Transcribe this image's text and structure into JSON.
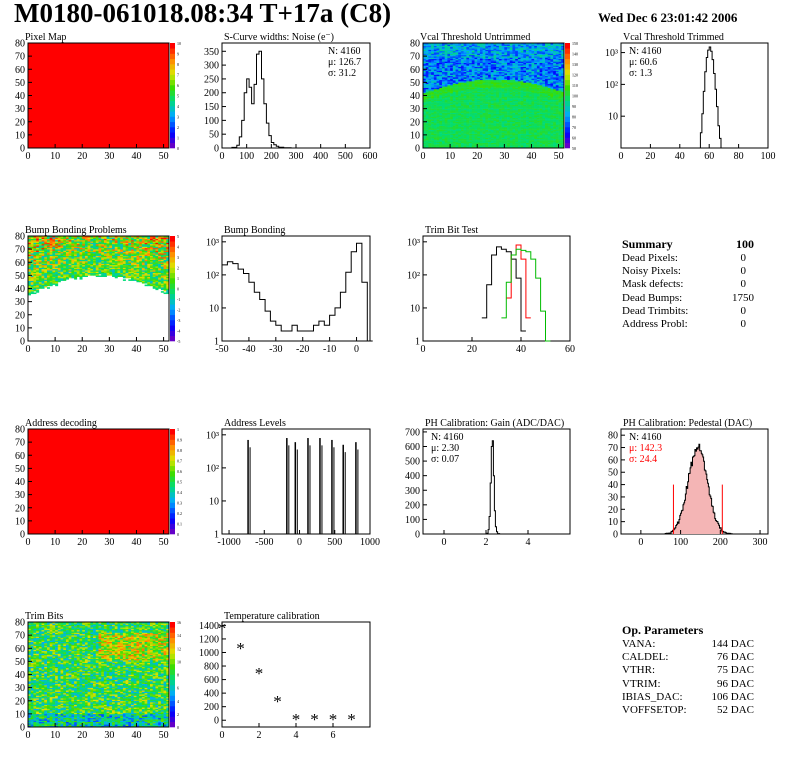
{
  "header": {
    "title": "M0180-061018.08:34 T+17a (C8)",
    "date": "Wed Dec  6 23:01:42 2006"
  },
  "colors": {
    "red": "#ff0000",
    "green": "#00bb00",
    "black": "#000000",
    "frame": "#000000"
  },
  "chart_data": [
    {
      "id": "pixel-map",
      "type": "heatmap",
      "title": "Pixel Map",
      "xlim": [
        0,
        52
      ],
      "ylim": [
        0,
        80
      ],
      "xticks": [
        "0",
        "10",
        "20",
        "30",
        "40",
        "50"
      ],
      "yticks": [
        "0",
        "10",
        "20",
        "30",
        "40",
        "50",
        "60",
        "70",
        "80"
      ],
      "pattern": "uniform-max",
      "colorbar_ticks": [
        "0",
        "1",
        "2",
        "3",
        "4",
        "5",
        "6",
        "7",
        "8",
        "9",
        "10"
      ]
    },
    {
      "id": "scurve-widths",
      "type": "line",
      "title": "S-Curve widths: Noise (e⁻)",
      "xlim": [
        0,
        600
      ],
      "ylim": [
        0,
        380
      ],
      "xticks": [
        "0",
        "100",
        "200",
        "300",
        "400",
        "500",
        "600"
      ],
      "yticks": [
        "0",
        "50",
        "100",
        "150",
        "200",
        "250",
        "300",
        "350"
      ],
      "stats": [
        "N: 4160",
        "μ: 126.7",
        "σ: 31.2"
      ],
      "x": [
        20,
        40,
        60,
        70,
        80,
        90,
        100,
        110,
        120,
        130,
        140,
        150,
        160,
        170,
        180,
        190,
        200,
        210,
        220,
        230,
        250,
        280
      ],
      "y": [
        0,
        2,
        10,
        40,
        100,
        200,
        250,
        220,
        160,
        230,
        340,
        350,
        250,
        160,
        90,
        45,
        20,
        12,
        6,
        3,
        1,
        0
      ]
    },
    {
      "id": "vcal-untrimmed",
      "type": "heatmap",
      "title": "Vcal Threshold Untrimmed",
      "xlim": [
        0,
        52
      ],
      "ylim": [
        0,
        80
      ],
      "xticks": [
        "0",
        "10",
        "20",
        "30",
        "40",
        "50"
      ],
      "yticks": [
        "0",
        "10",
        "20",
        "30",
        "40",
        "50",
        "60",
        "70",
        "80"
      ],
      "pattern": "threshold",
      "colorbar_ticks": [
        "50",
        "60",
        "70",
        "80",
        "90",
        "100",
        "110",
        "120",
        "130",
        "140",
        "150"
      ]
    },
    {
      "id": "vcal-trimmed",
      "type": "line",
      "title": "Vcal Threshold Trimmed",
      "xlim": [
        0,
        100
      ],
      "ylim": [
        1,
        2000
      ],
      "log": true,
      "xticks": [
        "0",
        "20",
        "40",
        "60",
        "80",
        "100"
      ],
      "yticks": [
        "10",
        "10²",
        "10³"
      ],
      "stats": [
        "N: 4160",
        "μ: 60.6",
        "σ:  1.3"
      ],
      "x": [
        53,
        54,
        55,
        56,
        57,
        58,
        59,
        60,
        61,
        62,
        63,
        64,
        65,
        66,
        67,
        68
      ],
      "y": [
        1,
        3,
        12,
        60,
        250,
        700,
        1200,
        1500,
        1100,
        600,
        220,
        70,
        20,
        5,
        2,
        1
      ]
    },
    {
      "id": "bump-bonding-problems",
      "type": "heatmap",
      "title": "Bump Bonding Problems",
      "xlim": [
        0,
        52
      ],
      "ylim": [
        0,
        80
      ],
      "xticks": [
        "0",
        "10",
        "20",
        "30",
        "40",
        "50"
      ],
      "yticks": [
        "0",
        "10",
        "20",
        "30",
        "40",
        "50",
        "60",
        "70",
        "80"
      ],
      "pattern": "bump",
      "colorbar_ticks": [
        "-5",
        "-4",
        "-3",
        "-2",
        "-1",
        "0",
        "1",
        "2",
        "3",
        "4",
        "5"
      ]
    },
    {
      "id": "bump-bonding",
      "type": "line",
      "title": "Bump Bonding",
      "xlim": [
        -50,
        5
      ],
      "ylim": [
        1,
        1500
      ],
      "log": true,
      "xticks": [
        "-50",
        "-40",
        "-30",
        "-20",
        "-10",
        "0"
      ],
      "yticks": [
        "1",
        "10",
        "10²",
        "10³"
      ],
      "x": [
        -50,
        -48,
        -46,
        -44,
        -42,
        -40,
        -38,
        -36,
        -34,
        -32,
        -30,
        -28,
        -26,
        -24,
        -22,
        -20,
        -18,
        -16,
        -14,
        -12,
        -10,
        -8,
        -6,
        -4,
        -2,
        0,
        2,
        4
      ],
      "y": [
        200,
        250,
        220,
        150,
        110,
        60,
        30,
        18,
        8,
        4,
        3,
        2,
        2,
        3,
        2,
        2,
        2,
        3,
        4,
        3,
        6,
        10,
        30,
        120,
        500,
        900,
        60,
        1
      ]
    },
    {
      "id": "trim-bit-test",
      "type": "line",
      "title": "Trim Bit Test",
      "xlim": [
        0,
        60
      ],
      "ylim": [
        1,
        1500
      ],
      "log": true,
      "xticks": [
        "0",
        "20",
        "40",
        "60"
      ],
      "yticks": [
        "1",
        "10",
        "10²",
        "10³"
      ],
      "series": [
        {
          "color": "black",
          "x": [
            24,
            26,
            28,
            30,
            32,
            34,
            36,
            38,
            40
          ],
          "y": [
            5,
            50,
            400,
            700,
            600,
            500,
            300,
            80,
            2
          ]
        },
        {
          "color": "red",
          "x": [
            34,
            36,
            38,
            40,
            42
          ],
          "y": [
            20,
            400,
            800,
            300,
            5
          ]
        },
        {
          "color": "green",
          "x": [
            32,
            34,
            36,
            38,
            40,
            42,
            44,
            46,
            48,
            50
          ],
          "y": [
            5,
            60,
            400,
            600,
            550,
            500,
            300,
            80,
            8,
            1
          ]
        }
      ]
    },
    {
      "id": "address-decoding",
      "type": "heatmap",
      "title": "Address decoding",
      "xlim": [
        0,
        52
      ],
      "ylim": [
        0,
        80
      ],
      "xticks": [
        "0",
        "10",
        "20",
        "30",
        "40",
        "50"
      ],
      "yticks": [
        "0",
        "10",
        "20",
        "30",
        "40",
        "50",
        "60",
        "70",
        "80"
      ],
      "pattern": "uniform-max",
      "colorbar_ticks": [
        "0",
        "0.1",
        "0.2",
        "0.3",
        "0.4",
        "0.5",
        "0.6",
        "0.7",
        "0.8",
        "0.9",
        "1"
      ]
    },
    {
      "id": "address-levels",
      "type": "bar",
      "title": "Address Levels",
      "xlim": [
        -1100,
        1000
      ],
      "ylim": [
        1,
        1500
      ],
      "log": true,
      "xticks": [
        "-1000",
        "-500",
        "0",
        "500",
        "1000"
      ],
      "yticks": [
        "1",
        "10",
        "10²",
        "10³"
      ],
      "peaks": [
        -730,
        -180,
        -60,
        120,
        290,
        460,
        620,
        800
      ],
      "heights": [
        700,
        800,
        600,
        800,
        800,
        700,
        500,
        600
      ]
    },
    {
      "id": "ph-gain",
      "type": "line",
      "title": "PH Calibration: Gain (ADC/DAC)",
      "xlim": [
        -1,
        6
      ],
      "ylim": [
        0,
        720
      ],
      "xticks": [
        "0",
        "2",
        "4"
      ],
      "yticks": [
        "0",
        "100",
        "200",
        "300",
        "400",
        "500",
        "600",
        "700"
      ],
      "stats": [
        "N: 4160",
        "μ: 2.30",
        "σ: 0.07"
      ],
      "x": [
        1.95,
        2.05,
        2.1,
        2.15,
        2.2,
        2.25,
        2.3,
        2.35,
        2.4,
        2.45,
        2.5,
        2.55,
        2.65
      ],
      "y": [
        0,
        5,
        30,
        120,
        350,
        600,
        640,
        400,
        160,
        50,
        15,
        3,
        0
      ]
    },
    {
      "id": "ph-pedestal",
      "type": "line",
      "title": "PH Calibration: Pedestal (DAC)",
      "xlim": [
        -50,
        320
      ],
      "ylim": [
        0,
        85
      ],
      "xticks": [
        "0",
        "100",
        "200",
        "300"
      ],
      "yticks": [
        "0",
        "10",
        "20",
        "30",
        "40",
        "50",
        "60",
        "70",
        "80"
      ],
      "stats": [
        "N: 4160",
        "μ: 142.3",
        "σ: 24.4"
      ],
      "cut_lines": [
        82,
        205
      ],
      "mean": 142.3,
      "sigma": 24.4,
      "peak": 70
    },
    {
      "id": "trim-bits",
      "type": "heatmap",
      "title": "Trim Bits",
      "xlim": [
        0,
        52
      ],
      "ylim": [
        0,
        80
      ],
      "xticks": [
        "0",
        "10",
        "20",
        "30",
        "40",
        "50"
      ],
      "yticks": [
        "0",
        "10",
        "20",
        "30",
        "40",
        "50",
        "60",
        "70",
        "80"
      ],
      "pattern": "trimbits",
      "colorbar_ticks": [
        "0",
        "2",
        "4",
        "6",
        "8",
        "10",
        "12",
        "14",
        "16"
      ]
    },
    {
      "id": "temperature-calibration",
      "type": "scatter",
      "title": "Temperature calibration",
      "xlim": [
        0,
        8
      ],
      "ylim": [
        -100,
        1450
      ],
      "xticks": [
        "0",
        "2",
        "4",
        "6"
      ],
      "yticks": [
        "0",
        "200",
        "400",
        "600",
        "800",
        "1000",
        "1200",
        "1400"
      ],
      "x": [
        0,
        1,
        2,
        3,
        4,
        5,
        6,
        7
      ],
      "y": [
        1350,
        1050,
        680,
        270,
        0,
        0,
        0,
        0
      ]
    }
  ],
  "summary": {
    "title": "Summary",
    "total": "100",
    "rows": [
      {
        "label": "Dead Pixels:",
        "value": "0"
      },
      {
        "label": "Noisy Pixels:",
        "value": "0"
      },
      {
        "label": "Mask defects:",
        "value": "0"
      },
      {
        "label": "Dead Bumps:",
        "value": "1750"
      },
      {
        "label": "Dead Trimbits:",
        "value": "0"
      },
      {
        "label": "Address Probl:",
        "value": "0"
      }
    ]
  },
  "op_parameters": {
    "title": "Op. Parameters",
    "rows": [
      {
        "label": "VANA:",
        "value": "144 DAC"
      },
      {
        "label": "CALDEL:",
        "value": "76 DAC"
      },
      {
        "label": "VTHR:",
        "value": "75 DAC"
      },
      {
        "label": "VTRIM:",
        "value": "96 DAC"
      },
      {
        "label": "IBIAS_DAC:",
        "value": "106 DAC"
      },
      {
        "label": "VOFFSETOP:",
        "value": "52 DAC"
      }
    ]
  }
}
